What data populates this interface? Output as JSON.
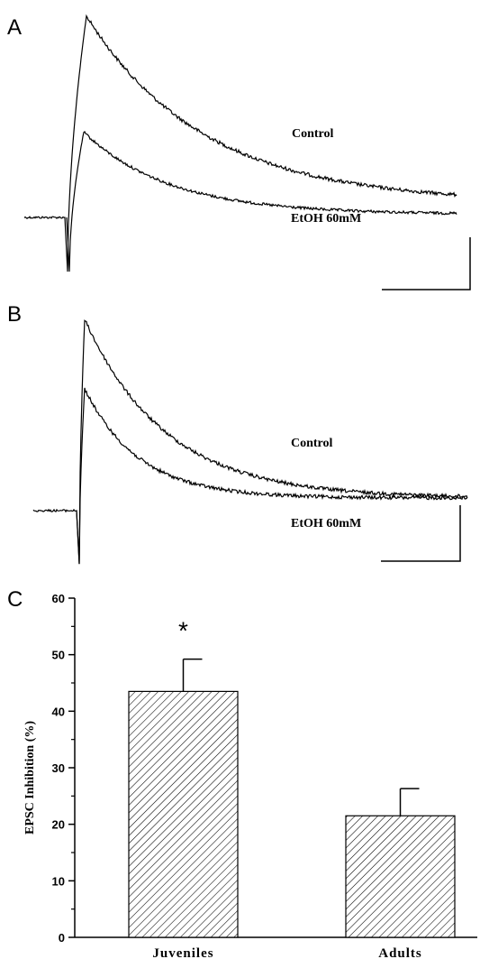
{
  "chart_data": [
    {
      "type": "line",
      "panel": "A",
      "series": [
        {
          "name": "Control",
          "values": [
            0,
            -1,
            0.95,
            0.55,
            0.25,
            0.07
          ]
        },
        {
          "name": "EtOH 60mM",
          "values": [
            0,
            -1,
            0.55,
            0.18,
            0.05,
            0.02
          ]
        }
      ],
      "labels": {
        "control": "Control",
        "ethanol": "EtOH 60mM"
      }
    },
    {
      "type": "line",
      "panel": "B",
      "series": [
        {
          "name": "Control",
          "values": [
            0,
            -1,
            1.0,
            0.4,
            0.1,
            0.0
          ]
        },
        {
          "name": "EtOH 60mM",
          "values": [
            0,
            -1,
            0.75,
            0.25,
            0.07,
            0.0
          ]
        }
      ],
      "labels": {
        "control": "Control",
        "ethanol": "EtOH 60mM"
      }
    },
    {
      "type": "bar",
      "panel": "C",
      "categories": [
        "Juveniles",
        "Adults"
      ],
      "values": [
        43.5,
        21.5
      ],
      "errors": [
        5.7,
        4.8
      ],
      "ylabel": "EPSC Inhibition (%)",
      "ylim": [
        0,
        60
      ],
      "yticks": [
        0,
        10,
        20,
        30,
        40,
        50,
        60
      ],
      "annotation": {
        "text": "*",
        "category": "Juveniles"
      }
    }
  ],
  "panels": {
    "a": "A",
    "b": "B",
    "c": "C"
  }
}
